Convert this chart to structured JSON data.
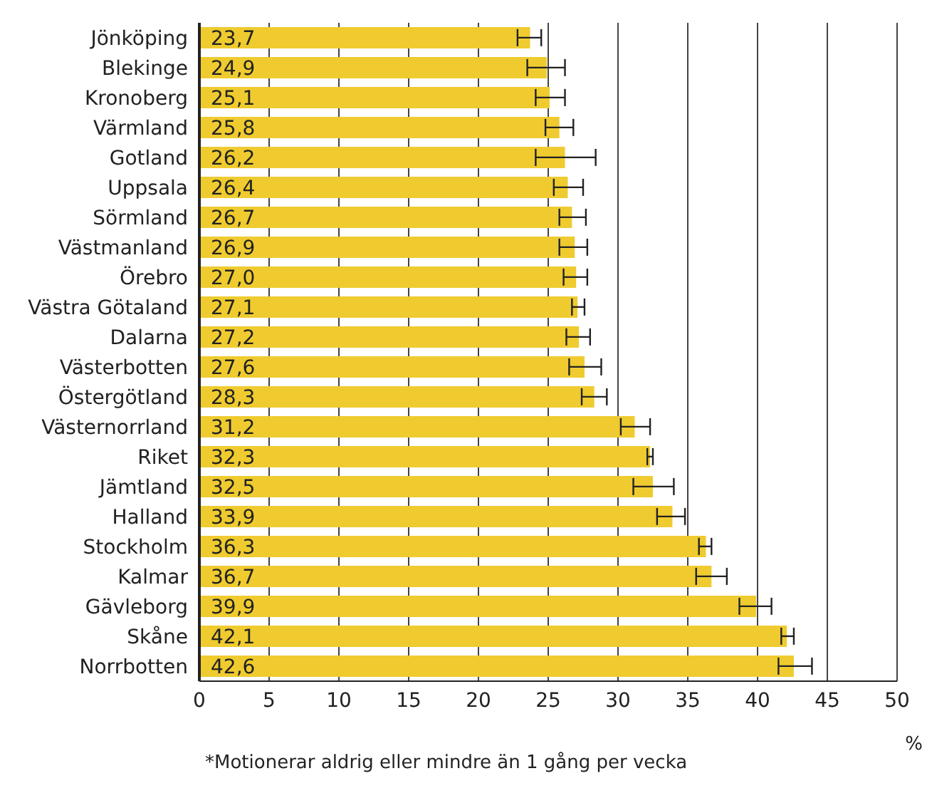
{
  "chart_data": {
    "type": "bar",
    "orientation": "horizontal",
    "categories": [
      "Jönköping",
      "Blekinge",
      "Kronoberg",
      "Värmland",
      "Gotland",
      "Uppsala",
      "Sörmland",
      "Västmanland",
      "Örebro",
      "Västra Götaland",
      "Dalarna",
      "Västerbotten",
      "Östergötland",
      "Västernorrland",
      "Riket",
      "Jämtland",
      "Halland",
      "Stockholm",
      "Kalmar",
      "Gävleborg",
      "Skåne",
      "Norrbotten"
    ],
    "values": [
      23.7,
      24.9,
      25.1,
      25.8,
      26.2,
      26.4,
      26.7,
      26.9,
      27.0,
      27.1,
      27.2,
      27.6,
      28.3,
      31.2,
      32.3,
      32.5,
      33.9,
      36.3,
      36.7,
      39.9,
      42.1,
      42.6
    ],
    "value_labels": [
      "23,7",
      "24,9",
      "25,1",
      "25,8",
      "26,2",
      "26,4",
      "26,7",
      "26,9",
      "27,0",
      "27,1",
      "27,2",
      "27,6",
      "28,3",
      "31,2",
      "32,3",
      "32,5",
      "33,9",
      "36,3",
      "36,7",
      "39,9",
      "42,1",
      "42,6"
    ],
    "errors": [
      [
        22.8,
        24.5
      ],
      [
        23.5,
        26.2
      ],
      [
        24.1,
        26.2
      ],
      [
        24.8,
        26.8
      ],
      [
        24.1,
        28.4
      ],
      [
        25.4,
        27.5
      ],
      [
        25.8,
        27.7
      ],
      [
        25.8,
        27.8
      ],
      [
        26.1,
        27.8
      ],
      [
        26.7,
        27.6
      ],
      [
        26.3,
        28.0
      ],
      [
        26.5,
        28.8
      ],
      [
        27.4,
        29.2
      ],
      [
        30.2,
        32.3
      ],
      [
        32.1,
        32.5
      ],
      [
        31.1,
        34.0
      ],
      [
        32.8,
        34.8
      ],
      [
        35.8,
        36.7
      ],
      [
        35.6,
        37.8
      ],
      [
        38.7,
        41.0
      ],
      [
        41.7,
        42.6
      ],
      [
        41.5,
        43.9
      ]
    ],
    "color": "#efcb2f",
    "xlim": [
      0,
      50
    ],
    "xticks": [
      0,
      5,
      10,
      15,
      20,
      25,
      30,
      35,
      40,
      45,
      50
    ],
    "xlabel": "%",
    "grid": "x",
    "legend": false,
    "annotations": [
      "*Motionerar aldrig eller mindre än 1 gång per vecka"
    ]
  }
}
